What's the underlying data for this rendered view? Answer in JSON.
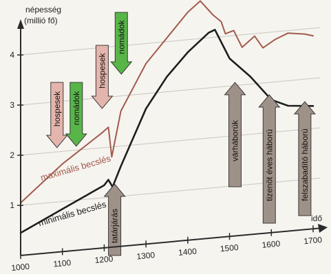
{
  "chart_data": {
    "type": "line",
    "ylabel_line1": "népesség",
    "ylabel_line2": "(millió fő)",
    "xlabel": "idő",
    "xlim": [
      1000,
      1700
    ],
    "ylim": [
      0,
      4.6
    ],
    "x_ticks": [
      1000,
      1100,
      1200,
      1300,
      1400,
      1500,
      1600,
      1700
    ],
    "y_ticks": [
      1,
      2,
      3,
      4
    ],
    "grid": true,
    "series": [
      {
        "name": "maximális becslés",
        "color": "#a05a4c",
        "x": [
          1000,
          1100,
          1195,
          1210,
          1218,
          1240,
          1300,
          1400,
          1430,
          1460,
          1480,
          1490,
          1510,
          1530,
          1560,
          1580,
          1610,
          1640,
          1680,
          1700
        ],
        "y": [
          1.05,
          1.75,
          2.3,
          2.4,
          1.8,
          2.7,
          3.6,
          4.55,
          4.75,
          4.45,
          4.3,
          4.05,
          4.1,
          3.75,
          3.95,
          3.7,
          3.85,
          3.95,
          3.9,
          3.85
        ]
      },
      {
        "name": "minimális becslés",
        "color": "#1e1e1e",
        "x": [
          1000,
          1100,
          1200,
          1210,
          1220,
          1240,
          1300,
          1350,
          1400,
          1450,
          1465,
          1500,
          1550,
          1600,
          1640,
          1700
        ],
        "y": [
          0.45,
          0.85,
          1.25,
          1.35,
          1.2,
          1.6,
          2.7,
          3.3,
          3.75,
          4.1,
          4.15,
          3.55,
          3.15,
          2.65,
          2.5,
          2.45
        ]
      }
    ],
    "events": [
      {
        "label": "hospesek",
        "type": "hospes",
        "x": 1087,
        "dir": "down",
        "color": "#e4b5ac"
      },
      {
        "label": "nomádok",
        "type": "nomad",
        "x": 1133,
        "dir": "down",
        "color": "#58b548"
      },
      {
        "label": "hospesek",
        "type": "hospes",
        "x": 1195,
        "dir": "down",
        "color": "#e4b5ac"
      },
      {
        "label": "nomádok",
        "type": "nomad",
        "x": 1241,
        "dir": "down",
        "color": "#58b548"
      },
      {
        "label": "tatárjárás",
        "type": "war",
        "x": 1225,
        "dir": "up",
        "color": "#9e9188"
      },
      {
        "label": "várháborúk",
        "type": "war",
        "x": 1513,
        "dir": "up",
        "color": "#9e9188"
      },
      {
        "label": "tizenöt éves háború",
        "type": "war",
        "x": 1595,
        "dir": "up",
        "color": "#9e9188"
      },
      {
        "label": "felszabadító háború",
        "type": "war",
        "x": 1680,
        "dir": "up",
        "color": "#9e9188"
      }
    ]
  }
}
